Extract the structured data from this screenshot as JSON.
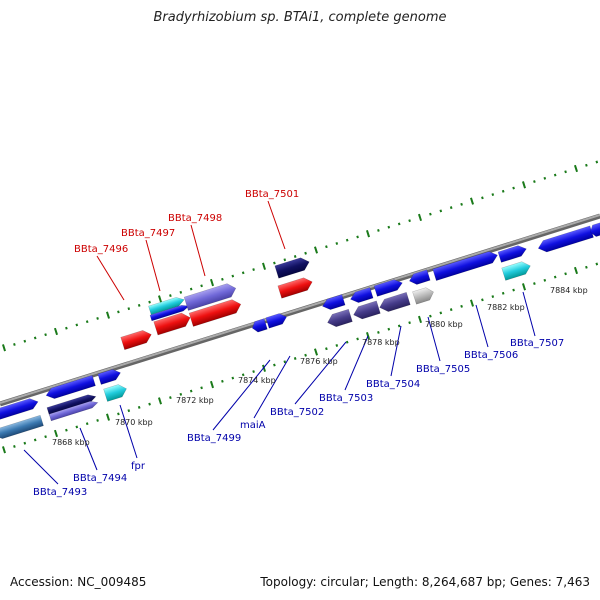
{
  "title": "Bradyrhizobium sp. BTAi1, complete genome",
  "footer": {
    "accession": "Accession: NC_009485",
    "summary": "Topology: circular; Length: 8,264,687 bp; Genes: 7,463"
  },
  "colors": {
    "backbone": "#8a8a8a",
    "tick": "#1a7a1a",
    "highlight_label": "#cc0000",
    "gene_label": "#0000aa",
    "kbp_label": "#222222"
  },
  "kbp_labels": [
    "7868 kbp",
    "7870 kbp",
    "7872 kbp",
    "7874 kbp",
    "7876 kbp",
    "7878 kbp",
    "7880 kbp",
    "7882 kbp",
    "7884 kbp"
  ],
  "gene_labels": {
    "BBta_7496": "BBta_7496",
    "BBta_7497": "BBta_7497",
    "BBta_7498": "BBta_7498",
    "BBta_7501": "BBta_7501",
    "BBta_7493": "BBta_7493",
    "BBta_7494": "BBta_7494",
    "fpr": "fpr",
    "BBta_7499": "BBta_7499",
    "maiA": "maiA",
    "BBta_7502": "BBta_7502",
    "BBta_7503": "BBta_7503",
    "BBta_7504": "BBta_7504",
    "BBta_7505": "BBta_7505",
    "BBta_7506": "BBta_7506",
    "BBta_7507": "BBta_7507"
  }
}
